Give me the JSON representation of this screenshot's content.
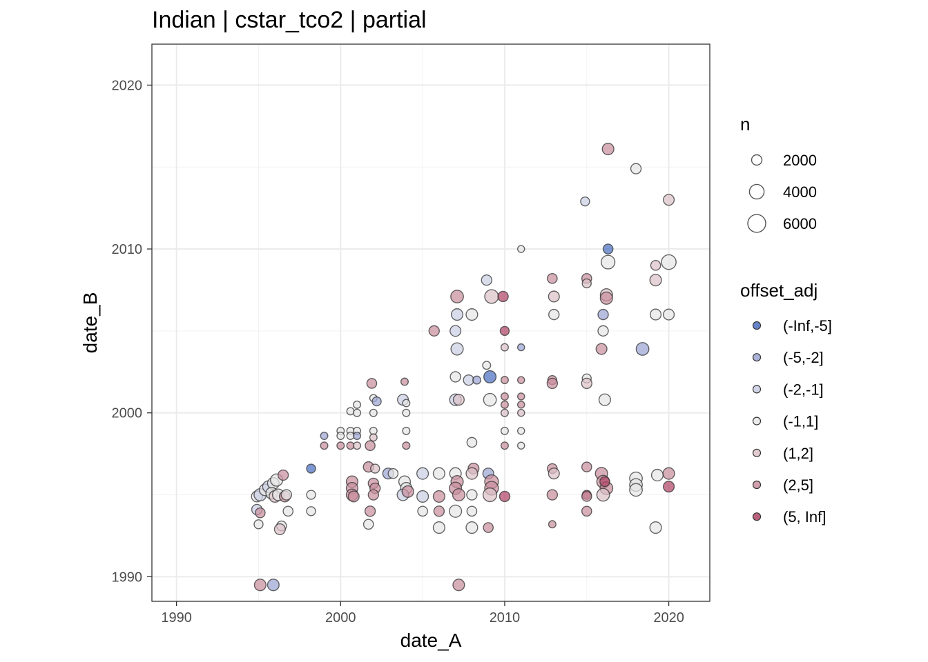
{
  "chart_data": {
    "type": "scatter",
    "title": "Indian | cstar_tco2 | partial",
    "xlabel": "date_A",
    "ylabel": "date_B",
    "xlim": [
      1988.5,
      2022.5
    ],
    "ylim": [
      1988.5,
      2022.5
    ],
    "xticks": [
      1990,
      2000,
      2010,
      2020
    ],
    "yticks": [
      1990,
      2000,
      2010,
      2020
    ],
    "grid": true,
    "size_legend": {
      "title": "n",
      "entries": [
        {
          "label": "2000",
          "value": 2000
        },
        {
          "label": "4000",
          "value": 4000
        },
        {
          "label": "6000",
          "value": 6000
        }
      ]
    },
    "color_legend": {
      "title": "offset_adj",
      "entries": [
        {
          "label": "(-Inf,-5]",
          "color": "#4a6fc0"
        },
        {
          "label": "(-5,-2]",
          "color": "#9ba5d2"
        },
        {
          "label": "(-2,-1]",
          "color": "#c9cee3"
        },
        {
          "label": "(-1,1]",
          "color": "#e6e6e6"
        },
        {
          "label": "(1,2]",
          "color": "#ddc2c9"
        },
        {
          "label": "(2,5]",
          "color": "#c98f9e"
        },
        {
          "label": "(5, Inf]",
          "color": "#b04566"
        }
      ]
    },
    "points": [
      {
        "x": 1995.1,
        "y": 1989.5,
        "n": 2500,
        "c": "(2,5]"
      },
      {
        "x": 1995.9,
        "y": 1989.5,
        "n": 2500,
        "c": "(-5,-2]"
      },
      {
        "x": 2007.2,
        "y": 1989.5,
        "n": 2500,
        "c": "(2,5]"
      },
      {
        "x": 1994.9,
        "y": 1994.9,
        "n": 2200,
        "c": "(-1,1]"
      },
      {
        "x": 1995.1,
        "y": 1995.0,
        "n": 2800,
        "c": "(-2,-1]"
      },
      {
        "x": 1995.4,
        "y": 1995.3,
        "n": 2500,
        "c": "(-1,1]"
      },
      {
        "x": 1995.6,
        "y": 1995.5,
        "n": 2500,
        "c": "(-2,-1]"
      },
      {
        "x": 1995.9,
        "y": 1995.7,
        "n": 2500,
        "c": "(-1,1]"
      },
      {
        "x": 1996.1,
        "y": 1995.9,
        "n": 2800,
        "c": "(-1,1]"
      },
      {
        "x": 1995.8,
        "y": 1995.1,
        "n": 2500,
        "c": "(-1,1]"
      },
      {
        "x": 1996.0,
        "y": 1994.9,
        "n": 2500,
        "c": "(1,2]"
      },
      {
        "x": 1996.2,
        "y": 1995.0,
        "n": 2500,
        "c": "(-1,1]"
      },
      {
        "x": 1996.6,
        "y": 1994.9,
        "n": 2200,
        "c": "(2,5]"
      },
      {
        "x": 1996.5,
        "y": 1996.2,
        "n": 2000,
        "c": "(2,5]"
      },
      {
        "x": 1996.7,
        "y": 1995.0,
        "n": 2000,
        "c": "(-1,1]"
      },
      {
        "x": 1994.9,
        "y": 1994.1,
        "n": 2000,
        "c": "(-2,-1]"
      },
      {
        "x": 1995.1,
        "y": 1993.9,
        "n": 1800,
        "c": "(2,5]"
      },
      {
        "x": 1995.0,
        "y": 1993.2,
        "n": 1500,
        "c": "(-1,1]"
      },
      {
        "x": 1996.8,
        "y": 1994.0,
        "n": 1800,
        "c": "(-1,1]"
      },
      {
        "x": 1996.4,
        "y": 1993.1,
        "n": 1800,
        "c": "(-1,1]"
      },
      {
        "x": 1996.3,
        "y": 1992.9,
        "n": 2200,
        "c": "(1,2]"
      },
      {
        "x": 1998.2,
        "y": 1996.6,
        "n": 1500,
        "c": "(-Inf,-5]"
      },
      {
        "x": 1998.2,
        "y": 1995.0,
        "n": 1500,
        "c": "(-1,1]"
      },
      {
        "x": 1998.2,
        "y": 1994.0,
        "n": 1500,
        "c": "(-1,1]"
      },
      {
        "x": 1999.0,
        "y": 1998.6,
        "n": 1000,
        "c": "(-5,-2]"
      },
      {
        "x": 1999.0,
        "y": 1998.0,
        "n": 1000,
        "c": "(2,5]"
      },
      {
        "x": 2000.0,
        "y": 1998.9,
        "n": 1000,
        "c": "(-1,1]"
      },
      {
        "x": 2000.0,
        "y": 1998.6,
        "n": 1000,
        "c": "(-1,1]"
      },
      {
        "x": 2000.0,
        "y": 1998.0,
        "n": 1000,
        "c": "(2,5]"
      },
      {
        "x": 2000.6,
        "y": 2000.1,
        "n": 1000,
        "c": "(-1,1]"
      },
      {
        "x": 2000.6,
        "y": 1998.9,
        "n": 1000,
        "c": "(-1,1]"
      },
      {
        "x": 2000.6,
        "y": 1998.6,
        "n": 1000,
        "c": "(-1,1]"
      },
      {
        "x": 2000.6,
        "y": 1998.0,
        "n": 1000,
        "c": "(2,5]"
      },
      {
        "x": 2001.0,
        "y": 2000.5,
        "n": 1000,
        "c": "(-1,1]"
      },
      {
        "x": 2001.0,
        "y": 2000.0,
        "n": 1000,
        "c": "(-1,1]"
      },
      {
        "x": 2001.0,
        "y": 1998.9,
        "n": 1000,
        "c": "(-1,1]"
      },
      {
        "x": 2001.0,
        "y": 1998.6,
        "n": 1000,
        "c": "(-5,-2]"
      },
      {
        "x": 2001.0,
        "y": 1998.0,
        "n": 1000,
        "c": "(1,2]"
      },
      {
        "x": 2000.7,
        "y": 1995.8,
        "n": 2500,
        "c": "(2,5]"
      },
      {
        "x": 2000.7,
        "y": 1995.4,
        "n": 2500,
        "c": "(2,5]"
      },
      {
        "x": 2000.7,
        "y": 1995.0,
        "n": 2500,
        "c": "(2,5]"
      },
      {
        "x": 2000.8,
        "y": 1994.9,
        "n": 2200,
        "c": "(2,5]"
      },
      {
        "x": 2001.9,
        "y": 2001.8,
        "n": 1800,
        "c": "(2,5]"
      },
      {
        "x": 2002.0,
        "y": 2000.9,
        "n": 1000,
        "c": "(-1,1]"
      },
      {
        "x": 2002.2,
        "y": 2000.7,
        "n": 1500,
        "c": "(-5,-2]"
      },
      {
        "x": 2002.0,
        "y": 2000.0,
        "n": 1000,
        "c": "(-1,1]"
      },
      {
        "x": 2002.0,
        "y": 1998.9,
        "n": 1000,
        "c": "(-1,1]"
      },
      {
        "x": 2002.0,
        "y": 1998.5,
        "n": 1000,
        "c": "(1,2]"
      },
      {
        "x": 2001.8,
        "y": 1998.0,
        "n": 1800,
        "c": "(2,5]"
      },
      {
        "x": 2001.7,
        "y": 1996.7,
        "n": 2000,
        "c": "(2,5]"
      },
      {
        "x": 2002.1,
        "y": 1996.6,
        "n": 1500,
        "c": "(1,2]"
      },
      {
        "x": 2002.0,
        "y": 1995.7,
        "n": 2000,
        "c": "(2,5]"
      },
      {
        "x": 2002.1,
        "y": 1995.4,
        "n": 2000,
        "c": "(2,5]"
      },
      {
        "x": 2002.0,
        "y": 1995.0,
        "n": 2000,
        "c": "(2,5]"
      },
      {
        "x": 2001.8,
        "y": 1994.0,
        "n": 2000,
        "c": "(2,5]"
      },
      {
        "x": 2001.7,
        "y": 1993.2,
        "n": 1800,
        "c": "(-1,1]"
      },
      {
        "x": 2002.9,
        "y": 1996.3,
        "n": 2200,
        "c": "(-5,-2]"
      },
      {
        "x": 2003.2,
        "y": 1996.3,
        "n": 1800,
        "c": "(-1,1]"
      },
      {
        "x": 2003.9,
        "y": 2001.9,
        "n": 1000,
        "c": "(2,5]"
      },
      {
        "x": 2003.8,
        "y": 2000.8,
        "n": 2200,
        "c": "(-2,-1]"
      },
      {
        "x": 2004.0,
        "y": 2000.6,
        "n": 1000,
        "c": "(-1,1]"
      },
      {
        "x": 2004.0,
        "y": 2000.0,
        "n": 1000,
        "c": "(-1,1]"
      },
      {
        "x": 2004.0,
        "y": 1998.9,
        "n": 1000,
        "c": "(-1,1]"
      },
      {
        "x": 2004.0,
        "y": 1998.0,
        "n": 1000,
        "c": "(2,5]"
      },
      {
        "x": 2003.9,
        "y": 1995.8,
        "n": 2500,
        "c": "(-1,1]"
      },
      {
        "x": 2004.0,
        "y": 1995.4,
        "n": 2500,
        "c": "(-1,1]"
      },
      {
        "x": 2003.8,
        "y": 1995.0,
        "n": 2500,
        "c": "(-2,-1]"
      },
      {
        "x": 2004.1,
        "y": 1995.2,
        "n": 2500,
        "c": "(2,5]"
      },
      {
        "x": 2005.0,
        "y": 1996.3,
        "n": 2500,
        "c": "(-2,-1]"
      },
      {
        "x": 2005.0,
        "y": 1994.9,
        "n": 2500,
        "c": "(-2,-1]"
      },
      {
        "x": 2005.0,
        "y": 1994.0,
        "n": 1800,
        "c": "(-1,1]"
      },
      {
        "x": 2005.7,
        "y": 2005.0,
        "n": 2000,
        "c": "(2,5]"
      },
      {
        "x": 2006.0,
        "y": 1996.3,
        "n": 2500,
        "c": "(-1,1]"
      },
      {
        "x": 2006.0,
        "y": 1994.9,
        "n": 2500,
        "c": "(2,5]"
      },
      {
        "x": 2006.0,
        "y": 1994.0,
        "n": 2000,
        "c": "(2,5]"
      },
      {
        "x": 2006.0,
        "y": 1993.0,
        "n": 2500,
        "c": "(-1,1]"
      },
      {
        "x": 2007.1,
        "y": 2007.1,
        "n": 3000,
        "c": "(2,5]"
      },
      {
        "x": 2007.1,
        "y": 2006.0,
        "n": 2500,
        "c": "(-2,-1]"
      },
      {
        "x": 2007.0,
        "y": 2005.0,
        "n": 2200,
        "c": "(-2,-1]"
      },
      {
        "x": 2007.1,
        "y": 2003.9,
        "n": 2800,
        "c": "(-2,-1]"
      },
      {
        "x": 2007.0,
        "y": 2002.2,
        "n": 2000,
        "c": "(-1,1]"
      },
      {
        "x": 2007.0,
        "y": 2000.8,
        "n": 2500,
        "c": "(-2,-1]"
      },
      {
        "x": 2007.2,
        "y": 2000.8,
        "n": 2200,
        "c": "(1,2]"
      },
      {
        "x": 2008.0,
        "y": 2006.0,
        "n": 2500,
        "c": "(-1,1]"
      },
      {
        "x": 2007.8,
        "y": 2002.0,
        "n": 2000,
        "c": "(-2,-1]"
      },
      {
        "x": 2008.0,
        "y": 1998.2,
        "n": 1800,
        "c": "(-1,1]"
      },
      {
        "x": 2007.0,
        "y": 1996.3,
        "n": 2500,
        "c": "(-1,1]"
      },
      {
        "x": 2007.1,
        "y": 1995.8,
        "n": 2800,
        "c": "(2,5]"
      },
      {
        "x": 2007.0,
        "y": 1995.4,
        "n": 2800,
        "c": "(2,5]"
      },
      {
        "x": 2007.2,
        "y": 1995.0,
        "n": 2800,
        "c": "(2,5]"
      },
      {
        "x": 2007.0,
        "y": 1994.0,
        "n": 2800,
        "c": "(-1,1]"
      },
      {
        "x": 2008.1,
        "y": 1996.6,
        "n": 2200,
        "c": "(2,5]"
      },
      {
        "x": 2008.0,
        "y": 1996.3,
        "n": 2500,
        "c": "(1,2]"
      },
      {
        "x": 2008.0,
        "y": 1995.0,
        "n": 2000,
        "c": "(-1,1]"
      },
      {
        "x": 2008.0,
        "y": 1994.0,
        "n": 1800,
        "c": "(-1,1]"
      },
      {
        "x": 2008.0,
        "y": 1993.0,
        "n": 2500,
        "c": "(-1,1]"
      },
      {
        "x": 2008.9,
        "y": 2008.1,
        "n": 2000,
        "c": "(-2,-1]"
      },
      {
        "x": 2009.2,
        "y": 2007.1,
        "n": 3500,
        "c": "(1,2]"
      },
      {
        "x": 2009.9,
        "y": 2007.1,
        "n": 2000,
        "c": "(5, Inf]"
      },
      {
        "x": 2008.9,
        "y": 2002.9,
        "n": 1200,
        "c": "(-1,1]"
      },
      {
        "x": 2009.1,
        "y": 2002.2,
        "n": 2800,
        "c": "(-Inf,-5]"
      },
      {
        "x": 2008.3,
        "y": 2002.0,
        "n": 1200,
        "c": "(-5,-2]"
      },
      {
        "x": 2009.1,
        "y": 2000.8,
        "n": 3000,
        "c": "(-1,1]"
      },
      {
        "x": 2009.0,
        "y": 1996.3,
        "n": 2200,
        "c": "(-5,-2]"
      },
      {
        "x": 2009.2,
        "y": 1995.8,
        "n": 3500,
        "c": "(2,5]"
      },
      {
        "x": 2009.2,
        "y": 1995.4,
        "n": 3500,
        "c": "(2,5]"
      },
      {
        "x": 2009.1,
        "y": 1995.0,
        "n": 3500,
        "c": "(1,2]"
      },
      {
        "x": 2009.0,
        "y": 1993.0,
        "n": 1800,
        "c": "(2,5]"
      },
      {
        "x": 2010.0,
        "y": 1994.9,
        "n": 2000,
        "c": "(5, Inf]"
      },
      {
        "x": 2010.0,
        "y": 2005.0,
        "n": 1500,
        "c": "(5, Inf]"
      },
      {
        "x": 2010.0,
        "y": 2004.0,
        "n": 1000,
        "c": "(1,2]"
      },
      {
        "x": 2010.0,
        "y": 2002.0,
        "n": 1000,
        "c": "(2,5]"
      },
      {
        "x": 2010.0,
        "y": 2001.0,
        "n": 1000,
        "c": "(2,5]"
      },
      {
        "x": 2010.0,
        "y": 2000.5,
        "n": 1000,
        "c": "(2,5]"
      },
      {
        "x": 2010.0,
        "y": 2000.0,
        "n": 1000,
        "c": "(1,2]"
      },
      {
        "x": 2010.0,
        "y": 1998.9,
        "n": 1000,
        "c": "(-1,1]"
      },
      {
        "x": 2010.0,
        "y": 1998.0,
        "n": 1000,
        "c": "(2,5]"
      },
      {
        "x": 2011.0,
        "y": 2010.0,
        "n": 900,
        "c": "(-1,1]"
      },
      {
        "x": 2011.0,
        "y": 2004.0,
        "n": 900,
        "c": "(-5,-2]"
      },
      {
        "x": 2011.0,
        "y": 2002.0,
        "n": 900,
        "c": "(2,5]"
      },
      {
        "x": 2011.0,
        "y": 2001.0,
        "n": 900,
        "c": "(2,5]"
      },
      {
        "x": 2011.0,
        "y": 2000.5,
        "n": 900,
        "c": "(2,5]"
      },
      {
        "x": 2011.0,
        "y": 2000.0,
        "n": 900,
        "c": "(1,2]"
      },
      {
        "x": 2011.0,
        "y": 1998.9,
        "n": 900,
        "c": "(-1,1]"
      },
      {
        "x": 2011.0,
        "y": 1998.0,
        "n": 900,
        "c": "(-1,1]"
      },
      {
        "x": 2012.9,
        "y": 2008.2,
        "n": 1800,
        "c": "(2,5]"
      },
      {
        "x": 2013.0,
        "y": 2007.1,
        "n": 2200,
        "c": "(1,2]"
      },
      {
        "x": 2013.0,
        "y": 2006.0,
        "n": 2000,
        "c": "(-1,1]"
      },
      {
        "x": 2012.9,
        "y": 2002.0,
        "n": 1500,
        "c": "(2,5]"
      },
      {
        "x": 2012.9,
        "y": 2001.8,
        "n": 2000,
        "c": "(2,5]"
      },
      {
        "x": 2012.9,
        "y": 1996.6,
        "n": 1800,
        "c": "(2,5]"
      },
      {
        "x": 2013.0,
        "y": 1996.3,
        "n": 2200,
        "c": "(1,2]"
      },
      {
        "x": 2012.9,
        "y": 1995.0,
        "n": 2000,
        "c": "(2,5]"
      },
      {
        "x": 2012.9,
        "y": 1993.2,
        "n": 1000,
        "c": "(2,5]"
      },
      {
        "x": 2014.9,
        "y": 2012.9,
        "n": 1500,
        "c": "(-2,-1]"
      },
      {
        "x": 2015.0,
        "y": 2008.2,
        "n": 1800,
        "c": "(2,5]"
      },
      {
        "x": 2015.0,
        "y": 2007.9,
        "n": 1500,
        "c": "(1,2]"
      },
      {
        "x": 2015.0,
        "y": 2002.1,
        "n": 1500,
        "c": "(-1,1]"
      },
      {
        "x": 2015.0,
        "y": 2001.8,
        "n": 2000,
        "c": "(1,2]"
      },
      {
        "x": 2015.0,
        "y": 1996.7,
        "n": 1800,
        "c": "(2,5]"
      },
      {
        "x": 2015.0,
        "y": 1995.0,
        "n": 1500,
        "c": "(5, Inf]"
      },
      {
        "x": 2015.0,
        "y": 1994.9,
        "n": 1800,
        "c": "(2,5]"
      },
      {
        "x": 2015.0,
        "y": 1994.0,
        "n": 1800,
        "c": "(2,5]"
      },
      {
        "x": 2016.3,
        "y": 2016.1,
        "n": 2500,
        "c": "(2,5]"
      },
      {
        "x": 2016.3,
        "y": 2010.0,
        "n": 1800,
        "c": "(-Inf,-5]"
      },
      {
        "x": 2016.3,
        "y": 2009.2,
        "n": 3500,
        "c": "(-1,1]"
      },
      {
        "x": 2016.2,
        "y": 2007.2,
        "n": 2800,
        "c": "(1,2]"
      },
      {
        "x": 2016.2,
        "y": 2007.0,
        "n": 2800,
        "c": "(2,5]"
      },
      {
        "x": 2016.0,
        "y": 2006.0,
        "n": 2000,
        "c": "(-5,-2]"
      },
      {
        "x": 2016.0,
        "y": 2005.0,
        "n": 2000,
        "c": "(-1,1]"
      },
      {
        "x": 2015.9,
        "y": 2003.9,
        "n": 2200,
        "c": "(2,5]"
      },
      {
        "x": 2016.1,
        "y": 2000.8,
        "n": 2500,
        "c": "(-1,1]"
      },
      {
        "x": 2015.9,
        "y": 1996.3,
        "n": 2800,
        "c": "(2,5]"
      },
      {
        "x": 2016.0,
        "y": 1995.8,
        "n": 3000,
        "c": "(2,5]"
      },
      {
        "x": 2016.2,
        "y": 1995.4,
        "n": 3000,
        "c": "(2,5]"
      },
      {
        "x": 2016.0,
        "y": 1995.0,
        "n": 3000,
        "c": "(1,2]"
      },
      {
        "x": 2016.1,
        "y": 1995.8,
        "n": 1800,
        "c": "(5, Inf]"
      },
      {
        "x": 2018.0,
        "y": 2014.9,
        "n": 2000,
        "c": "(-1,1]"
      },
      {
        "x": 2018.4,
        "y": 2003.9,
        "n": 3000,
        "c": "(-5,-2]"
      },
      {
        "x": 2018.0,
        "y": 1996.0,
        "n": 3000,
        "c": "(-1,1]"
      },
      {
        "x": 2018.0,
        "y": 1995.6,
        "n": 3000,
        "c": "(-1,1]"
      },
      {
        "x": 2018.0,
        "y": 1995.3,
        "n": 3000,
        "c": "(-1,1]"
      },
      {
        "x": 2020.0,
        "y": 2013.0,
        "n": 2200,
        "c": "(1,2]"
      },
      {
        "x": 2020.0,
        "y": 2009.2,
        "n": 4000,
        "c": "(-1,1]"
      },
      {
        "x": 2019.2,
        "y": 2009.0,
        "n": 1800,
        "c": "(1,2]"
      },
      {
        "x": 2019.2,
        "y": 2008.1,
        "n": 2500,
        "c": "(1,2]"
      },
      {
        "x": 2019.2,
        "y": 2006.0,
        "n": 2200,
        "c": "(-1,1]"
      },
      {
        "x": 2020.0,
        "y": 2006.0,
        "n": 2200,
        "c": "(-1,1]"
      },
      {
        "x": 2019.3,
        "y": 1996.2,
        "n": 2500,
        "c": "(-1,1]"
      },
      {
        "x": 2020.0,
        "y": 1996.3,
        "n": 2500,
        "c": "(2,5]"
      },
      {
        "x": 2020.0,
        "y": 1995.5,
        "n": 2200,
        "c": "(5, Inf]"
      },
      {
        "x": 2019.2,
        "y": 1993.0,
        "n": 2500,
        "c": "(-1,1]"
      }
    ]
  }
}
